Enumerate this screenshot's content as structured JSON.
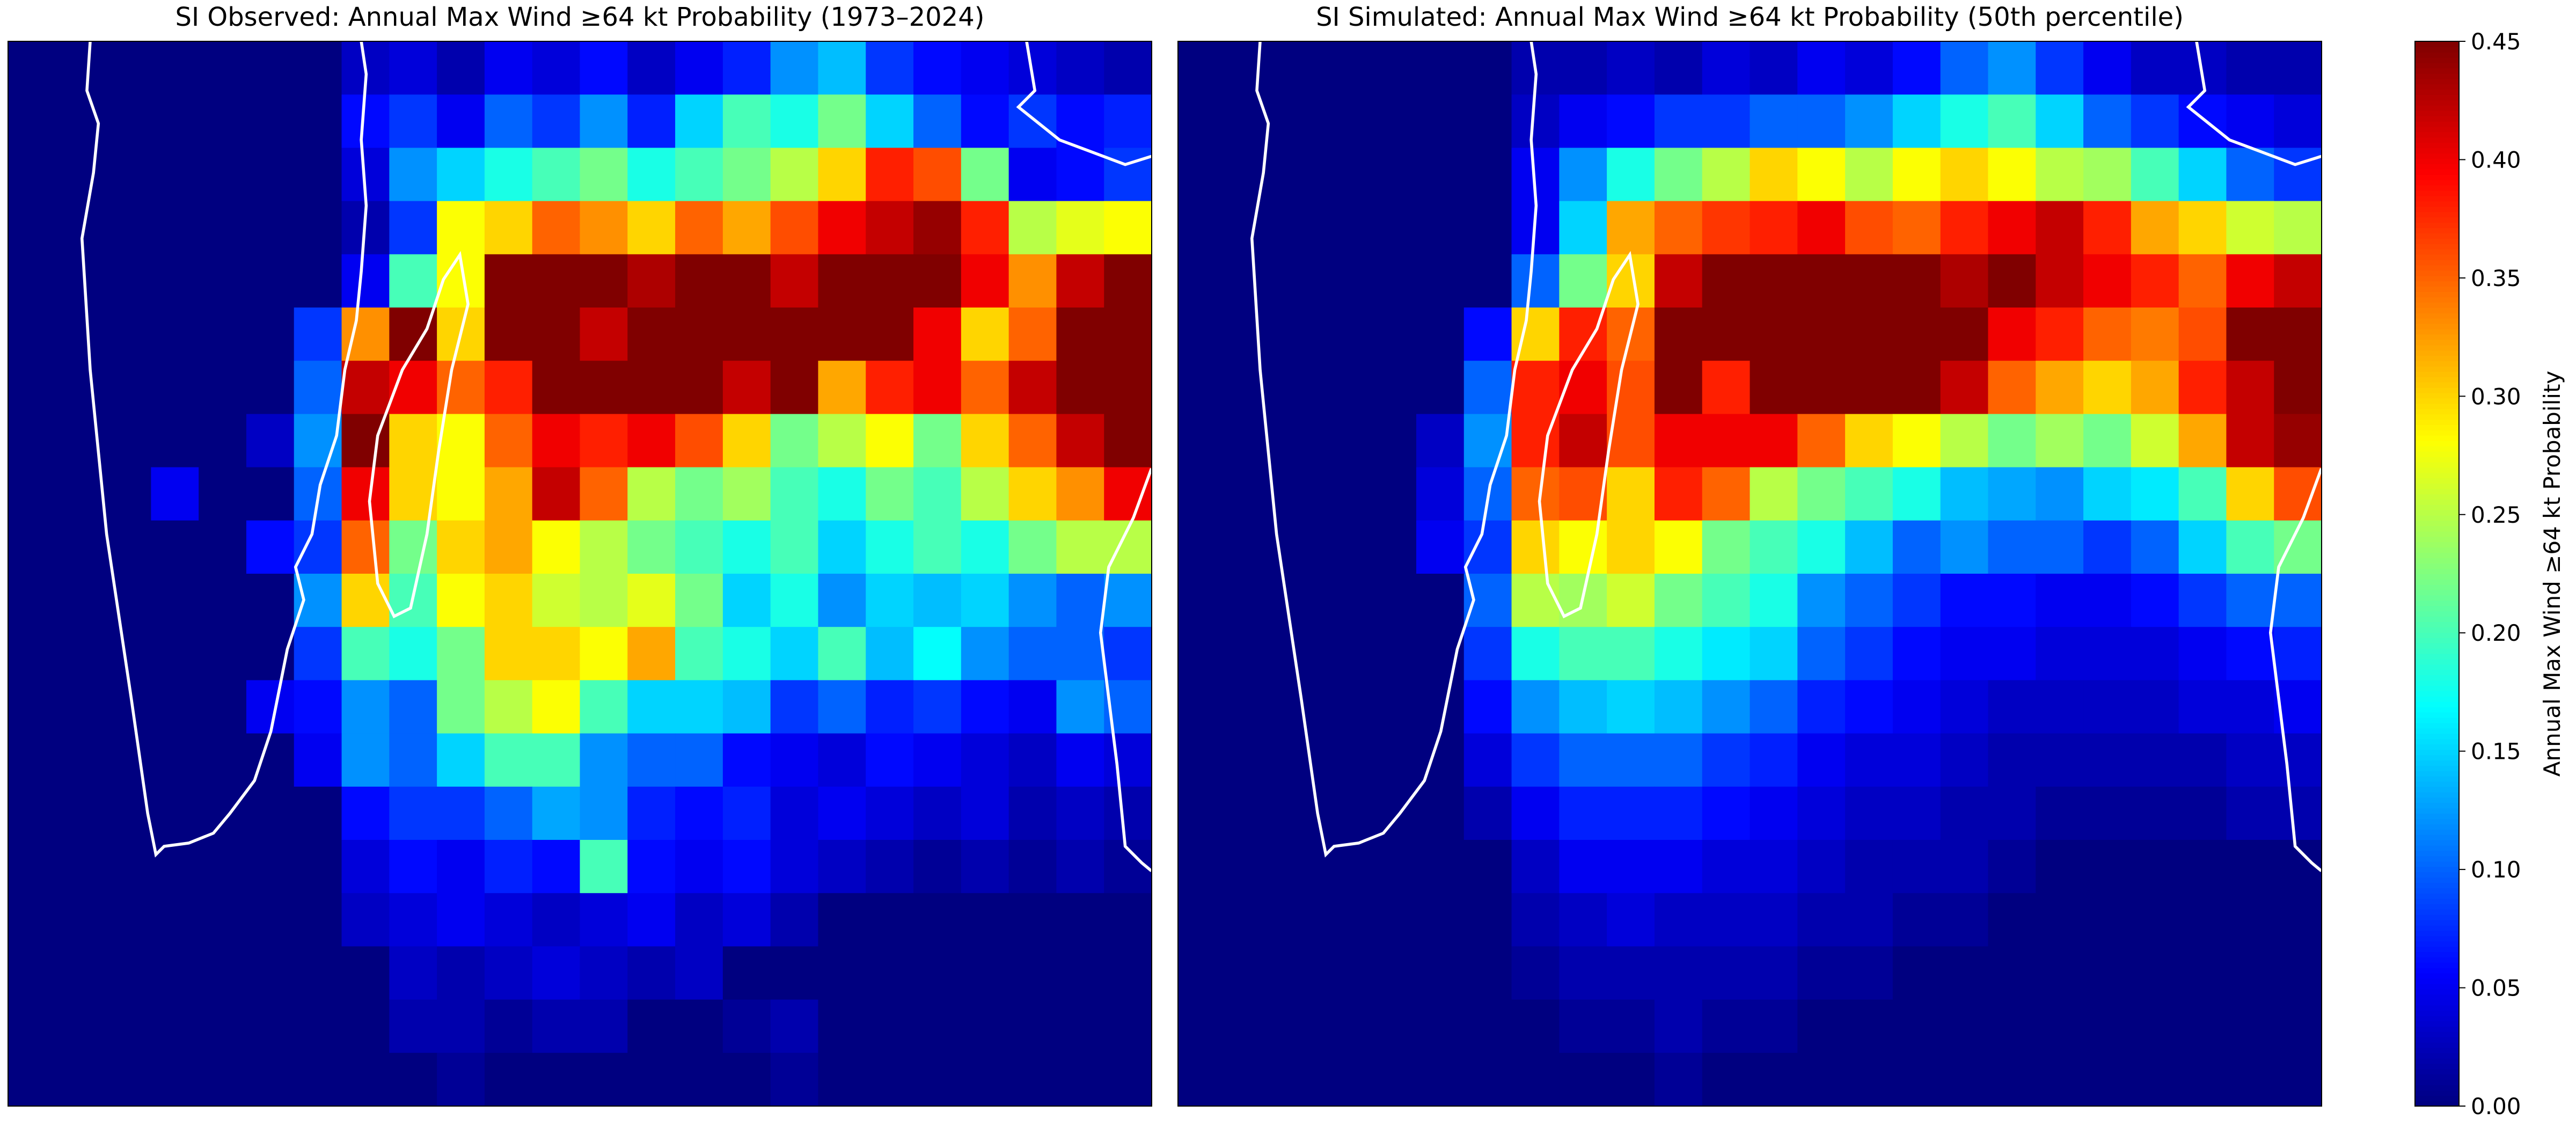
{
  "chart_data": [
    {
      "type": "heatmap",
      "title": "SI Observed: Annual Max Wind ≥64 kt Probability (1973–2024)",
      "colormap": "jet",
      "values": [
        [
          0,
          0,
          0,
          0,
          0,
          0,
          0,
          0.03,
          0.04,
          0.02,
          0.05,
          0.04,
          0.06,
          0.03,
          0.05,
          0.07,
          0.12,
          0.14,
          0.08,
          0.06,
          0.05,
          0.04,
          0.03,
          0.02
        ],
        [
          0,
          0,
          0,
          0,
          0,
          0,
          0,
          0.06,
          0.08,
          0.05,
          0.1,
          0.08,
          0.12,
          0.07,
          0.15,
          0.2,
          0.18,
          0.22,
          0.15,
          0.1,
          0.06,
          0.08,
          0.06,
          0.07
        ],
        [
          0,
          0,
          0,
          0,
          0,
          0,
          0,
          0.04,
          0.12,
          0.15,
          0.18,
          0.2,
          0.22,
          0.18,
          0.2,
          0.22,
          0.25,
          0.3,
          0.38,
          0.36,
          0.22,
          0.05,
          0.06,
          0.08
        ],
        [
          0,
          0,
          0,
          0,
          0,
          0,
          0,
          0.02,
          0.08,
          0.28,
          0.3,
          0.35,
          0.33,
          0.3,
          0.35,
          0.32,
          0.36,
          0.4,
          0.42,
          0.44,
          0.38,
          0.25,
          0.27,
          0.28
        ],
        [
          0,
          0,
          0,
          0,
          0,
          0,
          0,
          0.05,
          0.2,
          0.28,
          0.45,
          0.45,
          0.45,
          0.43,
          0.45,
          0.45,
          0.42,
          0.45,
          0.45,
          0.45,
          0.4,
          0.33,
          0.42,
          0.45
        ],
        [
          0,
          0,
          0,
          0,
          0,
          0,
          0.08,
          0.33,
          0.45,
          0.3,
          0.45,
          0.45,
          0.42,
          0.45,
          0.45,
          0.45,
          0.45,
          0.45,
          0.45,
          0.4,
          0.3,
          0.35,
          0.45,
          0.45
        ],
        [
          0,
          0,
          0,
          0,
          0,
          0,
          0.1,
          0.42,
          0.4,
          0.35,
          0.38,
          0.45,
          0.45,
          0.45,
          0.45,
          0.42,
          0.45,
          0.32,
          0.38,
          0.4,
          0.35,
          0.42,
          0.45,
          0.45
        ],
        [
          0,
          0,
          0,
          0,
          0,
          0.03,
          0.12,
          0.45,
          0.3,
          0.28,
          0.35,
          0.4,
          0.38,
          0.4,
          0.36,
          0.3,
          0.22,
          0.25,
          0.28,
          0.22,
          0.3,
          0.35,
          0.42,
          0.45
        ],
        [
          0,
          0,
          0,
          0.05,
          0,
          0,
          0.1,
          0.4,
          0.3,
          0.28,
          0.32,
          0.42,
          0.35,
          0.25,
          0.22,
          0.24,
          0.2,
          0.18,
          0.22,
          0.2,
          0.25,
          0.3,
          0.33,
          0.4
        ],
        [
          0,
          0,
          0,
          0,
          0,
          0.06,
          0.08,
          0.35,
          0.22,
          0.3,
          0.32,
          0.28,
          0.25,
          0.22,
          0.2,
          0.18,
          0.2,
          0.15,
          0.18,
          0.2,
          0.18,
          0.22,
          0.25,
          0.25
        ],
        [
          0,
          0,
          0,
          0,
          0,
          0,
          0.12,
          0.3,
          0.2,
          0.28,
          0.3,
          0.26,
          0.25,
          0.27,
          0.22,
          0.15,
          0.18,
          0.12,
          0.15,
          0.14,
          0.15,
          0.12,
          0.1,
          0.12
        ],
        [
          0,
          0,
          0,
          0,
          0,
          0,
          0.08,
          0.2,
          0.18,
          0.22,
          0.3,
          0.3,
          0.28,
          0.32,
          0.2,
          0.18,
          0.15,
          0.2,
          0.14,
          0.17,
          0.12,
          0.1,
          0.1,
          0.08
        ],
        [
          0,
          0,
          0,
          0,
          0,
          0.05,
          0.06,
          0.12,
          0.1,
          0.22,
          0.25,
          0.28,
          0.2,
          0.15,
          0.15,
          0.14,
          0.08,
          0.1,
          0.07,
          0.08,
          0.06,
          0.05,
          0.12,
          0.1
        ],
        [
          0,
          0,
          0,
          0,
          0,
          0,
          0.05,
          0.12,
          0.1,
          0.15,
          0.2,
          0.2,
          0.12,
          0.1,
          0.1,
          0.06,
          0.05,
          0.04,
          0.06,
          0.05,
          0.04,
          0.03,
          0.05,
          0.04
        ],
        [
          0,
          0,
          0,
          0,
          0,
          0,
          0,
          0.06,
          0.08,
          0.08,
          0.1,
          0.13,
          0.12,
          0.07,
          0.06,
          0.07,
          0.04,
          0.05,
          0.04,
          0.03,
          0.04,
          0.02,
          0.03,
          0.02
        ],
        [
          0,
          0,
          0,
          0,
          0,
          0,
          0,
          0.04,
          0.06,
          0.05,
          0.07,
          0.06,
          0.2,
          0.06,
          0.05,
          0.06,
          0.04,
          0.03,
          0.02,
          0.01,
          0.02,
          0.01,
          0.02,
          0.01
        ],
        [
          0,
          0,
          0,
          0,
          0,
          0,
          0,
          0.03,
          0.04,
          0.05,
          0.04,
          0.03,
          0.04,
          0.05,
          0.03,
          0.04,
          0.02,
          0,
          0,
          0,
          0,
          0,
          0,
          0
        ],
        [
          0,
          0,
          0,
          0,
          0,
          0,
          0,
          0,
          0.03,
          0.02,
          0.03,
          0.04,
          0.03,
          0.02,
          0.03,
          0,
          0,
          0,
          0,
          0,
          0,
          0,
          0,
          0
        ],
        [
          0,
          0,
          0,
          0,
          0,
          0,
          0,
          0,
          0.02,
          0.02,
          0.01,
          0.02,
          0.02,
          0,
          0,
          0.01,
          0.02,
          0,
          0,
          0,
          0,
          0,
          0,
          0
        ],
        [
          0,
          0,
          0,
          0,
          0,
          0,
          0,
          0,
          0,
          0.01,
          0,
          0,
          0,
          0,
          0,
          0,
          0.01,
          0,
          0,
          0,
          0,
          0,
          0,
          0
        ]
      ]
    },
    {
      "type": "heatmap",
      "title": "SI Simulated: Annual Max Wind ≥64 kt Probability (50th percentile)",
      "colormap": "jet",
      "values": [
        [
          0,
          0,
          0,
          0,
          0,
          0,
          0,
          0.02,
          0.02,
          0.03,
          0.02,
          0.04,
          0.03,
          0.05,
          0.04,
          0.06,
          0.1,
          0.12,
          0.08,
          0.05,
          0.03,
          0.03,
          0.02,
          0.02
        ],
        [
          0,
          0,
          0,
          0,
          0,
          0,
          0,
          0.03,
          0.05,
          0.06,
          0.08,
          0.08,
          0.1,
          0.1,
          0.12,
          0.15,
          0.18,
          0.2,
          0.15,
          0.1,
          0.08,
          0.06,
          0.05,
          0.04
        ],
        [
          0,
          0,
          0,
          0,
          0,
          0,
          0,
          0.05,
          0.12,
          0.18,
          0.22,
          0.25,
          0.3,
          0.28,
          0.25,
          0.28,
          0.3,
          0.28,
          0.25,
          0.24,
          0.2,
          0.15,
          0.1,
          0.08
        ],
        [
          0,
          0,
          0,
          0,
          0,
          0,
          0,
          0.05,
          0.15,
          0.32,
          0.35,
          0.37,
          0.38,
          0.4,
          0.36,
          0.35,
          0.38,
          0.4,
          0.42,
          0.38,
          0.32,
          0.3,
          0.26,
          0.25
        ],
        [
          0,
          0,
          0,
          0,
          0,
          0,
          0,
          0.1,
          0.22,
          0.3,
          0.42,
          0.45,
          0.45,
          0.45,
          0.45,
          0.45,
          0.43,
          0.45,
          0.42,
          0.4,
          0.38,
          0.35,
          0.4,
          0.42
        ],
        [
          0,
          0,
          0,
          0,
          0,
          0,
          0.06,
          0.3,
          0.38,
          0.35,
          0.45,
          0.45,
          0.45,
          0.45,
          0.45,
          0.45,
          0.45,
          0.4,
          0.38,
          0.35,
          0.34,
          0.36,
          0.45,
          0.45
        ],
        [
          0,
          0,
          0,
          0,
          0,
          0,
          0.1,
          0.38,
          0.4,
          0.36,
          0.45,
          0.38,
          0.45,
          0.45,
          0.45,
          0.45,
          0.42,
          0.35,
          0.32,
          0.3,
          0.32,
          0.38,
          0.42,
          0.45
        ],
        [
          0,
          0,
          0,
          0,
          0,
          0.03,
          0.12,
          0.38,
          0.42,
          0.36,
          0.4,
          0.4,
          0.4,
          0.35,
          0.3,
          0.28,
          0.25,
          0.22,
          0.24,
          0.22,
          0.26,
          0.32,
          0.42,
          0.44
        ],
        [
          0,
          0,
          0,
          0,
          0,
          0.04,
          0.1,
          0.35,
          0.36,
          0.3,
          0.38,
          0.35,
          0.25,
          0.22,
          0.2,
          0.18,
          0.14,
          0.13,
          0.12,
          0.15,
          0.16,
          0.2,
          0.3,
          0.36
        ],
        [
          0,
          0,
          0,
          0,
          0,
          0.05,
          0.08,
          0.3,
          0.28,
          0.3,
          0.28,
          0.22,
          0.2,
          0.18,
          0.14,
          0.1,
          0.12,
          0.1,
          0.1,
          0.08,
          0.1,
          0.15,
          0.2,
          0.22
        ],
        [
          0,
          0,
          0,
          0,
          0,
          0,
          0.1,
          0.25,
          0.24,
          0.26,
          0.22,
          0.2,
          0.18,
          0.12,
          0.1,
          0.08,
          0.06,
          0.06,
          0.05,
          0.05,
          0.06,
          0.08,
          0.1,
          0.1
        ],
        [
          0,
          0,
          0,
          0,
          0,
          0,
          0.08,
          0.18,
          0.2,
          0.2,
          0.18,
          0.16,
          0.15,
          0.1,
          0.08,
          0.06,
          0.05,
          0.05,
          0.04,
          0.04,
          0.04,
          0.05,
          0.06,
          0.07
        ],
        [
          0,
          0,
          0,
          0,
          0,
          0,
          0.06,
          0.12,
          0.14,
          0.15,
          0.14,
          0.12,
          0.1,
          0.07,
          0.06,
          0.05,
          0.04,
          0.03,
          0.03,
          0.03,
          0.03,
          0.04,
          0.04,
          0.05
        ],
        [
          0,
          0,
          0,
          0,
          0,
          0,
          0.04,
          0.08,
          0.1,
          0.1,
          0.1,
          0.08,
          0.07,
          0.05,
          0.04,
          0.04,
          0.03,
          0.02,
          0.02,
          0.02,
          0.02,
          0.02,
          0.03,
          0.03
        ],
        [
          0,
          0,
          0,
          0,
          0,
          0,
          0.02,
          0.05,
          0.07,
          0.07,
          0.07,
          0.06,
          0.05,
          0.04,
          0.03,
          0.03,
          0.02,
          0.02,
          0.01,
          0.01,
          0.01,
          0.01,
          0.02,
          0.02
        ],
        [
          0,
          0,
          0,
          0,
          0,
          0,
          0,
          0.03,
          0.05,
          0.05,
          0.05,
          0.04,
          0.04,
          0.03,
          0.02,
          0.02,
          0.02,
          0.01,
          0,
          0,
          0,
          0,
          0,
          0
        ],
        [
          0,
          0,
          0,
          0,
          0,
          0,
          0,
          0.02,
          0.03,
          0.04,
          0.03,
          0.03,
          0.03,
          0.02,
          0.02,
          0.01,
          0.01,
          0,
          0,
          0,
          0,
          0,
          0,
          0
        ],
        [
          0,
          0,
          0,
          0,
          0,
          0,
          0,
          0.01,
          0.02,
          0.02,
          0.02,
          0.02,
          0.02,
          0.01,
          0.01,
          0,
          0,
          0,
          0,
          0,
          0,
          0,
          0,
          0
        ],
        [
          0,
          0,
          0,
          0,
          0,
          0,
          0,
          0,
          0.01,
          0.01,
          0.02,
          0.01,
          0.01,
          0,
          0,
          0,
          0,
          0,
          0,
          0,
          0,
          0,
          0,
          0
        ],
        [
          0,
          0,
          0,
          0,
          0,
          0,
          0,
          0,
          0,
          0,
          0.01,
          0,
          0,
          0,
          0,
          0,
          0,
          0,
          0,
          0,
          0,
          0,
          0,
          0
        ]
      ]
    }
  ],
  "colorbar": {
    "label": "Annual Max Wind ≥64 kt Probability",
    "colormap": "jet",
    "lim": [
      0,
      0.45
    ],
    "ticks": [
      {
        "value": 0,
        "label": "0.00"
      },
      {
        "value": 0.05,
        "label": "0.05"
      },
      {
        "value": 0.1,
        "label": "0.10"
      },
      {
        "value": 0.15,
        "label": "0.15"
      },
      {
        "value": 0.2,
        "label": "0.20"
      },
      {
        "value": 0.25,
        "label": "0.25"
      },
      {
        "value": 0.3,
        "label": "0.30"
      },
      {
        "value": 0.35,
        "label": "0.35"
      },
      {
        "value": 0.4,
        "label": "0.40"
      },
      {
        "value": 0.45,
        "label": "0.45"
      }
    ]
  }
}
